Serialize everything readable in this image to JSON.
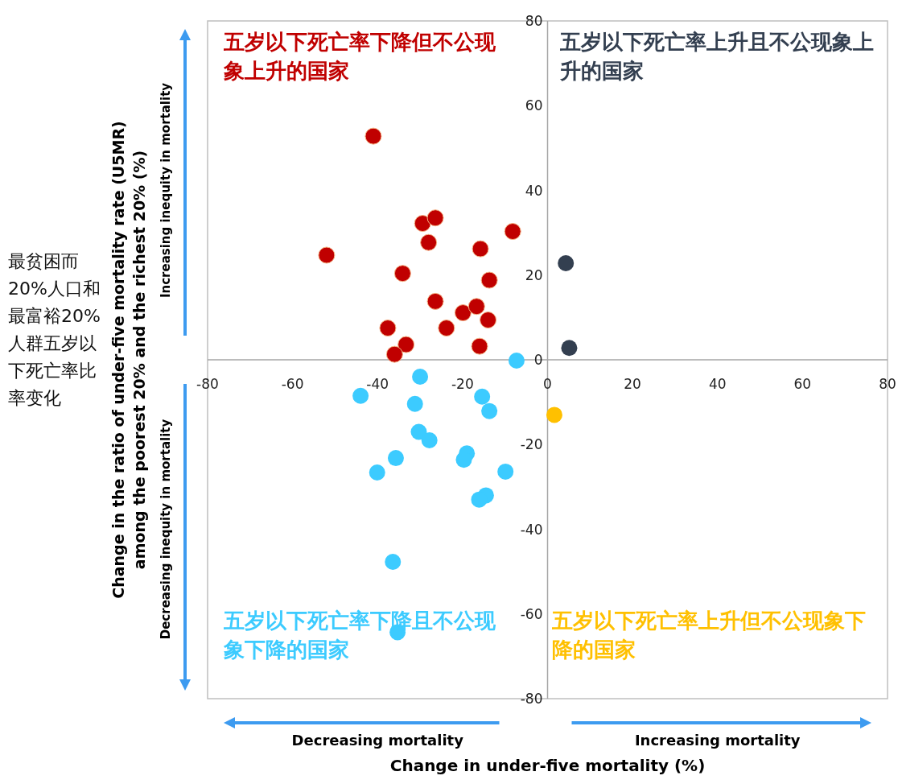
{
  "chart_data": {
    "type": "scatter",
    "xlabel": "Change in under-five mortality (%)",
    "ylabel": "Change in the ratio of under-five mortality rate (U5MR) among the poorest 20% and the richest 20% (%)",
    "xlim": [
      -80,
      80
    ],
    "xticks": [
      -80,
      -60,
      -40,
      -20,
      0,
      20,
      40,
      60,
      80
    ],
    "ylim": [
      -80,
      80
    ],
    "yticks": [
      -80,
      -60,
      -40,
      -20,
      0,
      20,
      40,
      60,
      80
    ],
    "grid": false,
    "marker": "circle",
    "annotations": [
      "五岁以下死亡率下降但不公现象上升的国家",
      "五岁以下死亡率上升且不公现象上升的国家",
      "五岁以下死亡率下降且不公现象下降的国家",
      "五岁以下死亡率上升但不公现象下降的国家",
      "最贫困而20%人口和最富裕20%人群五岁以下死亡率比率变化",
      "Increasing inequity in mortality",
      "Decreasing inequity in mortality",
      "Decreasing mortality",
      "Increasing mortality"
    ],
    "series": [
      {
        "color": "#c00000",
        "x": [
          -41.0,
          -52.0,
          -29.4,
          -26.4,
          -28.0,
          -8.2,
          -15.8,
          -34.1,
          -13.7,
          -26.4,
          -19.9,
          -16.7,
          -14.0,
          -37.6,
          -23.8,
          -33.3,
          -36.0,
          -16.0
        ],
        "values": [
          52.8,
          24.7,
          32.2,
          33.5,
          27.7,
          30.3,
          26.2,
          20.4,
          18.8,
          13.8,
          11.1,
          12.6,
          9.4,
          7.5,
          7.5,
          3.6,
          1.3,
          3.2
        ]
      },
      {
        "color": "#333f50",
        "x": [
          4.3,
          5.1
        ],
        "values": [
          22.8,
          2.8
        ]
      },
      {
        "color": "#3ccbff",
        "x": [
          -7.3,
          -30.0,
          -44.0,
          -31.2,
          -15.4,
          -13.7,
          -30.3,
          -27.8,
          -35.7,
          -40.1,
          -19.0,
          -19.7,
          -9.9,
          -14.5,
          -16.1,
          -36.4,
          -35.3
        ],
        "values": [
          -0.2,
          -4.0,
          -8.5,
          -10.4,
          -8.7,
          -12.1,
          -17.0,
          -19.0,
          -23.2,
          -26.6,
          -22.1,
          -23.6,
          -26.4,
          -32.0,
          -33.0,
          -47.7,
          -64.3
        ]
      },
      {
        "color": "#ffc000",
        "x": [
          1.6
        ],
        "values": [
          -13.0
        ]
      }
    ]
  }
}
